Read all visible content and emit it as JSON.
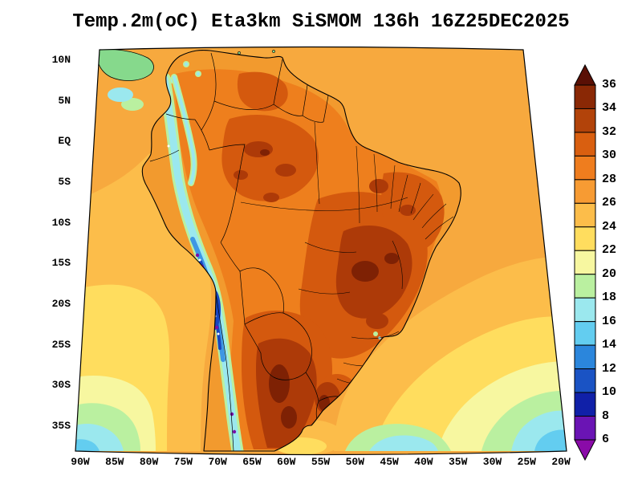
{
  "title": "Temp.2m(oC) Eta3km SiSMOM 136h 16Z25DEC2025",
  "axes": {
    "y_ticks": [
      "10N",
      "5N",
      "EQ",
      "5S",
      "10S",
      "15S",
      "20S",
      "25S",
      "30S",
      "35S"
    ],
    "x_ticks": [
      "90W",
      "85W",
      "80W",
      "75W",
      "70W",
      "65W",
      "60W",
      "55W",
      "50W",
      "45W",
      "40W",
      "35W",
      "30W",
      "25W",
      "20W"
    ]
  },
  "colorbar": {
    "labels": [
      "36",
      "34",
      "32",
      "30",
      "28",
      "26",
      "24",
      "22",
      "20",
      "18",
      "16",
      "14",
      "12",
      "10",
      "8",
      "6"
    ],
    "colors_top_to_bottom": [
      "#5a1005",
      "#8a2805",
      "#b2430a",
      "#d95f10",
      "#ef7d1e",
      "#f79b33",
      "#fcbd4a",
      "#ffdd5e",
      "#f7f7a0",
      "#baf0a0",
      "#9be8ee",
      "#63cdf0",
      "#2b86dc",
      "#1a53c4",
      "#1020a8",
      "#6a14b4",
      "#8a0ba8"
    ]
  },
  "chart_data": {
    "type": "heatmap",
    "title": "Temp.2m(oC) Eta3km SiSMOM 136h 16Z25DEC2025",
    "variable": "Temp.2m",
    "units": "oC",
    "model": "Eta3km SiSMOM",
    "forecast_hour": "136h",
    "valid_time": "16Z25DEC2025",
    "x_axis": {
      "ticks": [
        "90W",
        "85W",
        "80W",
        "75W",
        "70W",
        "65W",
        "60W",
        "55W",
        "50W",
        "45W",
        "40W",
        "35W",
        "30W",
        "25W",
        "20W"
      ],
      "range": [
        "90W",
        "20W"
      ]
    },
    "y_axis": {
      "ticks": [
        "10N",
        "5N",
        "EQ",
        "5S",
        "10S",
        "15S",
        "20S",
        "25S",
        "30S",
        "35S"
      ],
      "range": [
        "35S",
        "10N"
      ]
    },
    "contour_levels": [
      6,
      8,
      10,
      12,
      14,
      16,
      18,
      20,
      22,
      24,
      26,
      28,
      30,
      32,
      34,
      36
    ],
    "palette_low_to_high": [
      "#8a0ba8",
      "#6a14b4",
      "#1020a8",
      "#1a53c4",
      "#2b86dc",
      "#63cdf0",
      "#9be8ee",
      "#baf0a0",
      "#f7f7a0",
      "#ffdd5e",
      "#fcbd4a",
      "#f79b33",
      "#ef7d1e",
      "#d95f10",
      "#b2430a",
      "#8a2805",
      "#5a1005"
    ],
    "legend_position": "right",
    "grid": false
  }
}
